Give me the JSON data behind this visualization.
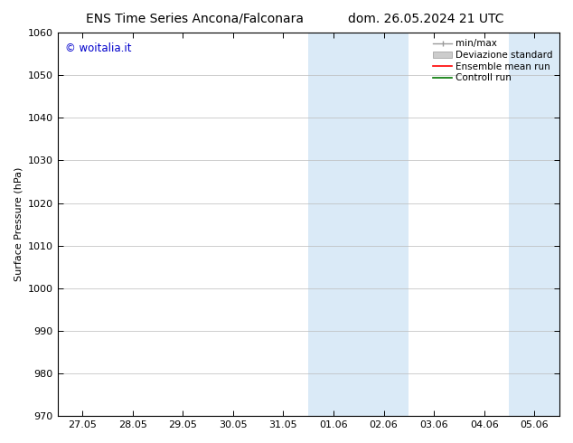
{
  "title_left": "ENS Time Series Ancona/Falconara",
  "title_right": "dom. 26.05.2024 21 UTC",
  "ylabel": "Surface Pressure (hPa)",
  "ylim": [
    970,
    1060
  ],
  "yticks": [
    970,
    980,
    990,
    1000,
    1010,
    1020,
    1030,
    1040,
    1050,
    1060
  ],
  "xtick_labels": [
    "27.05",
    "28.05",
    "29.05",
    "30.05",
    "31.05",
    "01.06",
    "02.06",
    "03.06",
    "04.06",
    "05.06"
  ],
  "xtick_positions": [
    0,
    1,
    2,
    3,
    4,
    5,
    6,
    7,
    8,
    9
  ],
  "xlim": [
    -0.5,
    9.5
  ],
  "shaded_bands": [
    {
      "x_start": 4.5,
      "x_end": 5.5
    },
    {
      "x_start": 5.5,
      "x_end": 6.5
    },
    {
      "x_start": 8.5,
      "x_end": 9.5
    }
  ],
  "shaded_color": "#daeaf7",
  "watermark_text": "© woitalia.it",
  "watermark_color": "#0000cc",
  "bg_color": "#ffffff",
  "plot_bg_color": "#ffffff",
  "grid_color": "#bbbbbb",
  "title_fontsize": 10,
  "axis_fontsize": 8,
  "tick_fontsize": 8,
  "legend_fontsize": 7.5
}
